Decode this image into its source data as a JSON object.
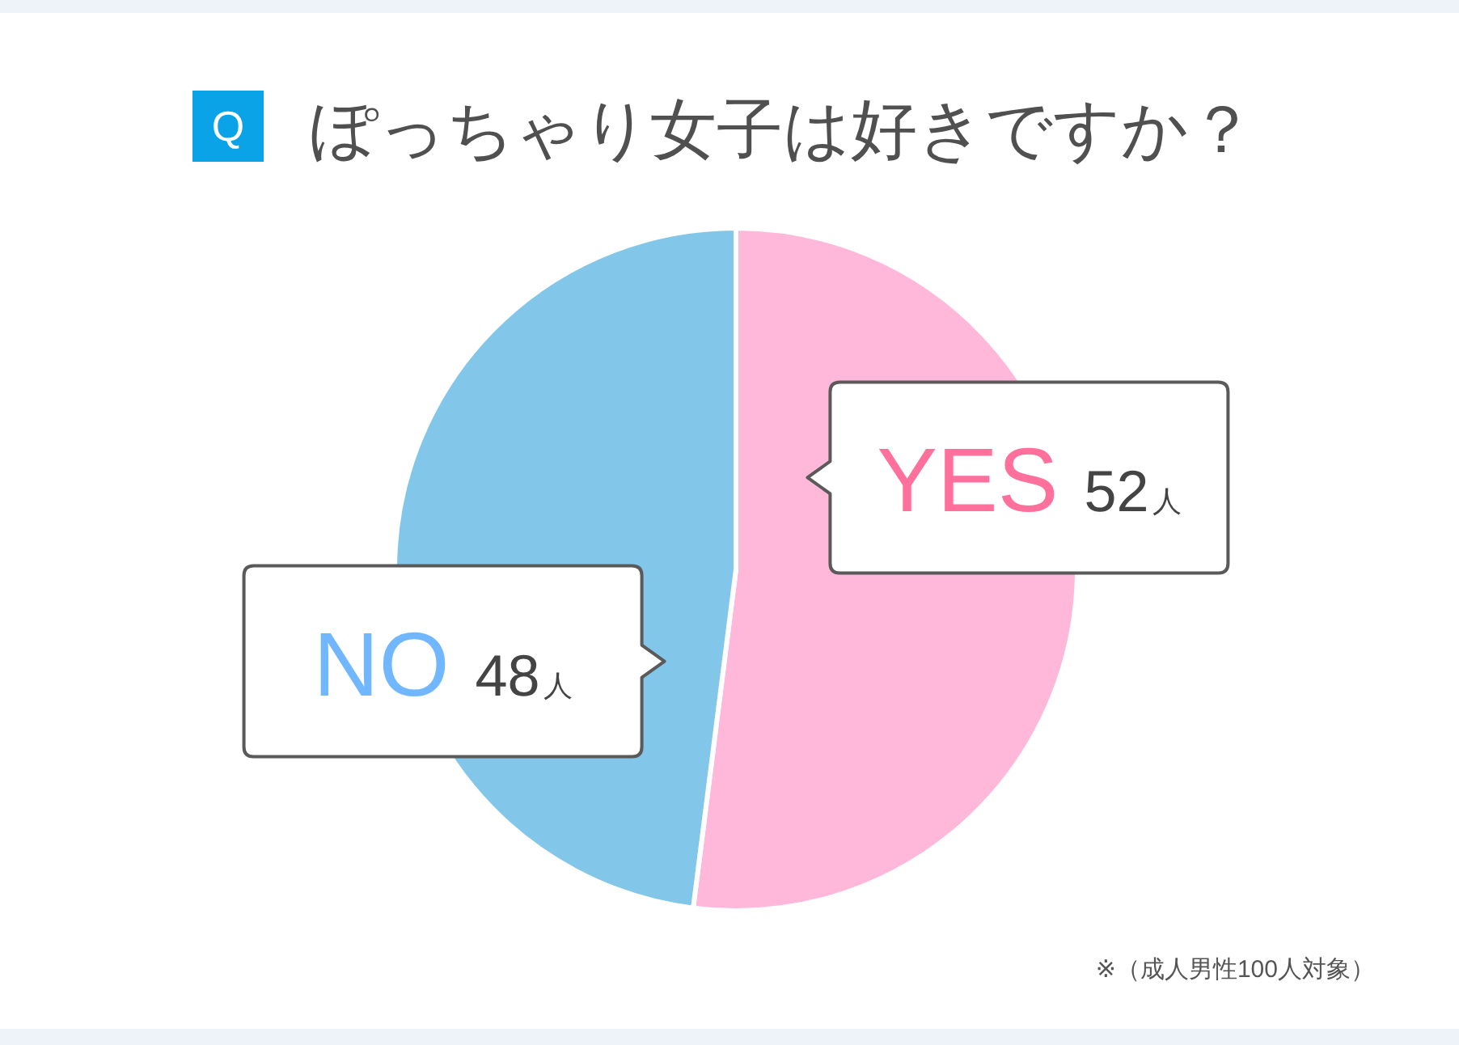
{
  "chart_data": {
    "type": "pie",
    "title": "Q ぽっちゃり女子は好きですか？",
    "categories": [
      "YES",
      "NO"
    ],
    "values": [
      52,
      48
    ],
    "colors": [
      "#ffb8da",
      "#82c6e9"
    ],
    "value_labels": [
      "52人",
      "48人"
    ],
    "annotations": [
      "※（成人男性100人対象）"
    ]
  }
}
